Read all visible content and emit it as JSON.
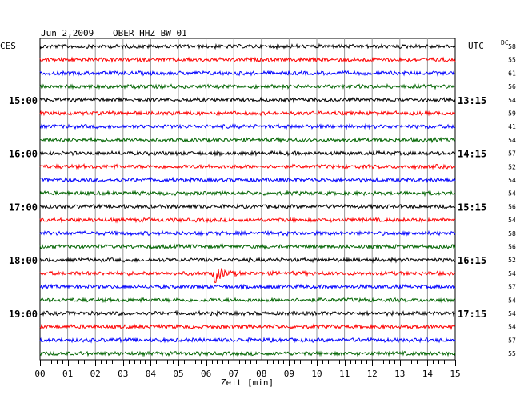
{
  "header": {
    "date": "Jun 2,2009",
    "station": "OBER HHZ BW 01",
    "left_tz": "CES",
    "right_tz": "UTC",
    "dc_header": "DC"
  },
  "chart_data": {
    "type": "line",
    "title": "Jun 2,2009   OBER HHZ BW 01",
    "xlabel": "Zeit [min]",
    "xlim": [
      0,
      15
    ],
    "x_ticks": [
      "00",
      "01",
      "02",
      "03",
      "04",
      "05",
      "06",
      "07",
      "08",
      "09",
      "10",
      "11",
      "12",
      "13",
      "14",
      "15"
    ],
    "trace_interval_min": 15,
    "trace_colors": [
      "#000000",
      "#ff0000",
      "#0000ff",
      "#006400"
    ],
    "left_hour_labels": [
      {
        "trace": 4,
        "label": "15:00"
      },
      {
        "trace": 8,
        "label": "16:00"
      },
      {
        "trace": 12,
        "label": "17:00"
      },
      {
        "trace": 16,
        "label": "18:00"
      },
      {
        "trace": 20,
        "label": "19:00"
      }
    ],
    "right_hour_labels": [
      {
        "trace": 4,
        "label": "13:15"
      },
      {
        "trace": 8,
        "label": "14:15"
      },
      {
        "trace": 12,
        "label": "15:15"
      },
      {
        "trace": 16,
        "label": "16:15"
      },
      {
        "trace": 20,
        "label": "17:15"
      }
    ],
    "dc_values": [
      "58",
      "55",
      "61",
      "56",
      "54",
      "59",
      "41",
      "54",
      "57",
      "52",
      "54",
      "54",
      "56",
      "54",
      "58",
      "56",
      "52",
      "54",
      "57",
      "54",
      "54",
      "54",
      "57",
      "55"
    ],
    "events": [
      {
        "trace": 17,
        "minute": 6.3,
        "note": "local event"
      }
    ]
  }
}
